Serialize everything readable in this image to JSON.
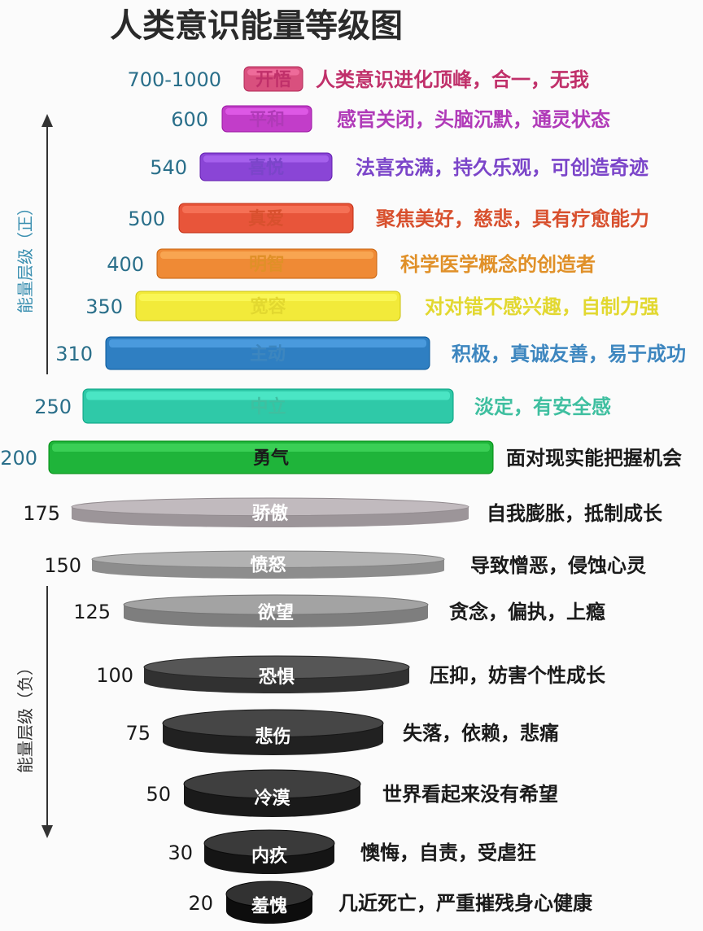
{
  "title": "人类意识能量等级图",
  "side_labels": {
    "positive": "能量层级（正）",
    "negative": "能量层级（负）"
  },
  "colors": {
    "positive_arrow": "#333333",
    "negative_arrow": "#333333"
  },
  "levels": [
    {
      "value": "700-1000",
      "name": "开悟",
      "desc": "人类意识进化顶峰，合一，无我",
      "color": "#d9507e",
      "text_color": "#c0306a",
      "num_color": "#2a6f8a"
    },
    {
      "value": "600",
      "name": "平和",
      "desc": "感官关闭，头脑沉默，通灵状态",
      "color": "#c23dc9",
      "text_color": "#b03ab8",
      "num_color": "#2a6f8a"
    },
    {
      "value": "540",
      "name": "喜悦",
      "desc": "法喜充满，持久乐观，可创造奇迹",
      "color": "#8a45d6",
      "text_color": "#7b45c9",
      "num_color": "#2a6f8a"
    },
    {
      "value": "500",
      "name": "真爱",
      "desc": "聚焦美好，慈悲，具有疗愈能力",
      "color": "#e8553a",
      "text_color": "#d8502e",
      "num_color": "#2a6f8a"
    },
    {
      "value": "400",
      "name": "明智",
      "desc": "科学医学概念的创造者",
      "color": "#ef8a35",
      "text_color": "#e09028",
      "num_color": "#2a6f8a"
    },
    {
      "value": "350",
      "name": "宽容",
      "desc": "对对错不感兴趣，自制力强",
      "color": "#f2ea3a",
      "text_color": "#e2d830",
      "num_color": "#2a6f8a"
    },
    {
      "value": "310",
      "name": "主动",
      "desc": "积极，真诚友善，易于成功",
      "color": "#2f7fc2",
      "text_color": "#3d86bf",
      "num_color": "#2a6f8a"
    },
    {
      "value": "250",
      "name": "中立",
      "desc": "淡定，有安全感",
      "color": "#2fc9a8",
      "text_color": "#3fbfa0",
      "num_color": "#2a6f8a"
    },
    {
      "value": "200",
      "name": "勇气",
      "desc": "面对现实能把握机会",
      "color": "#1fb43a",
      "text_color": "#1a1a1a",
      "num_color": "#2a6f8a"
    },
    {
      "value": "175",
      "name": "骄傲",
      "desc": "自我膨胀，抵制成长",
      "color": "#b5aeb2",
      "text_color": "#1a1a1a",
      "num_color": "#1a1a1a"
    },
    {
      "value": "150",
      "name": "愤怒",
      "desc": "导致憎恶，侵蚀心灵",
      "color": "#a6a6a6",
      "text_color": "#1a1a1a",
      "num_color": "#1a1a1a"
    },
    {
      "value": "125",
      "name": "欲望",
      "desc": "贪念，偏执，上瘾",
      "color": "#979797",
      "text_color": "#1a1a1a",
      "num_color": "#1a1a1a"
    },
    {
      "value": "100",
      "name": "恐惧",
      "desc": "压抑，妨害个性成长",
      "color": "#4a4a4a",
      "text_color": "#1a1a1a",
      "num_color": "#1a1a1a"
    },
    {
      "value": "75",
      "name": "悲伤",
      "desc": "失落，依赖，悲痛",
      "color": "#3a3a3a",
      "text_color": "#1a1a1a",
      "num_color": "#1a1a1a"
    },
    {
      "value": "50",
      "name": "冷漠",
      "desc": "世界看起来没有希望",
      "color": "#333333",
      "text_color": "#1a1a1a",
      "num_color": "#1a1a1a"
    },
    {
      "value": "30",
      "name": "内疚",
      "desc": "懊悔，自责，受虐狂",
      "color": "#2e2e2e",
      "text_color": "#1a1a1a",
      "num_color": "#1a1a1a"
    },
    {
      "value": "20",
      "name": "羞愧",
      "desc": "几近死亡，严重摧残身心健康",
      "color": "#262626",
      "text_color": "#1a1a1a",
      "num_color": "#1a1a1a"
    }
  ]
}
